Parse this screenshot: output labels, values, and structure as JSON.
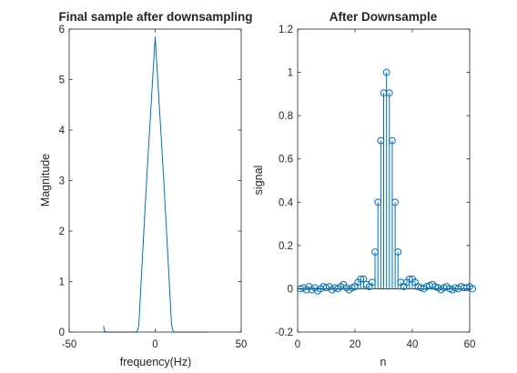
{
  "chart_data": [
    {
      "type": "line",
      "title": "Final sample after downsampling",
      "xlabel": "frequency(Hz)",
      "ylabel": "Magnitude",
      "xlim": [
        -50,
        50
      ],
      "ylim": [
        0,
        6
      ],
      "xticks": [
        -50,
        0,
        50
      ],
      "yticks": [
        0,
        1,
        2,
        3,
        4,
        5,
        6
      ],
      "grid": false,
      "color": "#0072BD",
      "series": [
        {
          "x": [
            -30,
            -29.5,
            -29,
            -28,
            -25,
            -20,
            -15,
            -11,
            -10,
            -9.5,
            -5,
            0,
            5,
            9.5,
            10,
            11,
            15,
            20,
            25,
            30
          ],
          "values": [
            0.12,
            0.02,
            0.01,
            0.0,
            0.0,
            0.0,
            0.0,
            0.0,
            0.05,
            0.15,
            3.0,
            5.85,
            3.0,
            0.15,
            0.05,
            0.0,
            0.0,
            0.0,
            0.0,
            0.0
          ]
        }
      ]
    },
    {
      "type": "stem",
      "title": "After Downsample",
      "xlabel": "n",
      "ylabel": "signal",
      "xlim": [
        0,
        60
      ],
      "ylim": [
        -0.2,
        1.2
      ],
      "xticks": [
        0,
        20,
        40,
        60
      ],
      "yticks": [
        -0.2,
        0,
        0.2,
        0.4,
        0.6,
        0.8,
        1,
        1.2
      ],
      "grid": false,
      "color": "#0072BD",
      "series": [
        {
          "x": [
            1,
            2,
            3,
            4,
            5,
            6,
            7,
            8,
            9,
            10,
            11,
            12,
            13,
            14,
            15,
            16,
            17,
            18,
            19,
            20,
            21,
            22,
            23,
            24,
            25,
            26,
            27,
            28,
            29,
            30,
            31,
            32,
            33,
            34,
            35,
            36,
            37,
            38,
            39,
            40,
            41,
            42,
            43,
            44,
            45,
            46,
            47,
            48,
            49,
            50,
            51,
            52,
            53,
            54,
            55,
            56,
            57,
            58,
            59,
            60,
            61
          ],
          "values": [
            0.0,
            0.005,
            -0.005,
            0.01,
            -0.005,
            0.005,
            -0.01,
            0.0,
            0.01,
            0.005,
            0.01,
            -0.005,
            0.005,
            0.0,
            0.01,
            0.02,
            0.005,
            -0.005,
            0.005,
            0.01,
            0.03,
            0.045,
            0.045,
            0.02,
            0.01,
            0.03,
            0.17,
            0.4,
            0.685,
            0.905,
            1.0,
            0.905,
            0.685,
            0.4,
            0.17,
            0.03,
            0.01,
            0.03,
            0.045,
            0.045,
            0.03,
            0.01,
            0.005,
            0.0,
            0.01,
            0.015,
            0.02,
            0.01,
            0.005,
            -0.005,
            0.005,
            0.01,
            0.0,
            -0.005,
            0.005,
            0.0,
            0.01,
            0.005,
            0.005,
            0.01,
            0.0
          ]
        }
      ]
    }
  ]
}
